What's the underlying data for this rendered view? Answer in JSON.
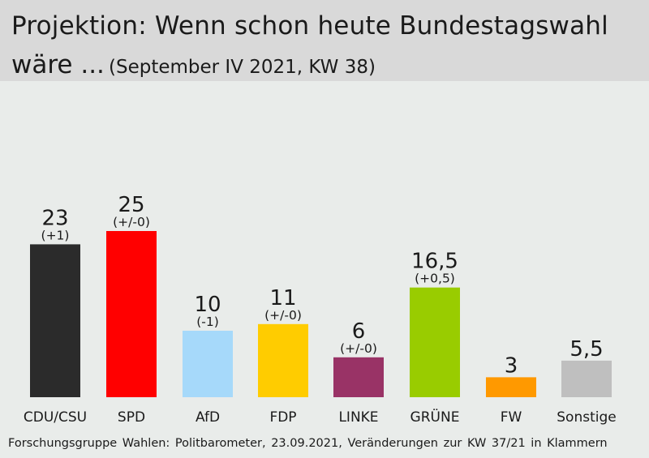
{
  "header": {
    "title_main": "Projektion: Wenn schon heute Bundestagswahl",
    "title_line2": "wäre ...",
    "title_sub": "(September IV 2021, KW 38)"
  },
  "footer": {
    "source": "Forschungsgruppe Wahlen: Politbarometer, 23.09.2021, Veränderungen zur KW 37/21 in Klammern"
  },
  "chart_data": {
    "type": "bar",
    "categories": [
      "CDU/CSU",
      "SPD",
      "AfD",
      "FDP",
      "LINKE",
      "GRÜNE",
      "FW",
      "Sonstige"
    ],
    "values": [
      23,
      25,
      10,
      11,
      6,
      16.5,
      3,
      5.5
    ],
    "value_labels": [
      "23",
      "25",
      "10",
      "11",
      "6",
      "16,5",
      "3",
      "5,5"
    ],
    "changes": [
      "(+1)",
      "(+/-0)",
      "(-1)",
      "(+/-0)",
      "(+/-0)",
      "(+0,5)",
      "",
      ""
    ],
    "colors": [
      "#2b2b2b",
      "#ff0000",
      "#a6d9fa",
      "#ffcc00",
      "#993366",
      "#99cc00",
      "#ff9900",
      "#bfbfbf"
    ],
    "ylim": [
      0,
      25
    ],
    "grid": false
  }
}
